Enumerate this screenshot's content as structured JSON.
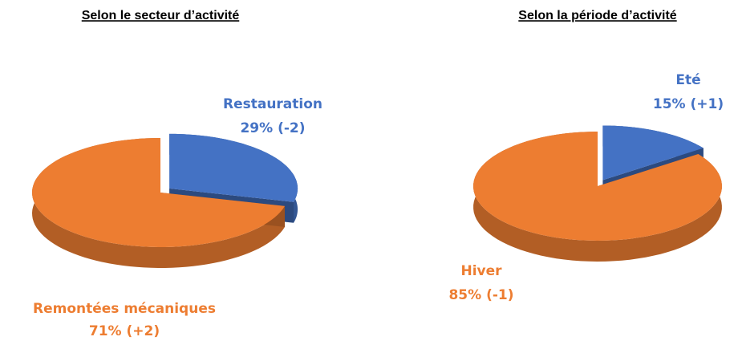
{
  "chart_data": [
    {
      "type": "pie",
      "title": "Selon le secteur d’activité",
      "categories": [
        "Restauration",
        "Remontées mécaniques"
      ],
      "values": [
        29,
        71
      ],
      "value_labels": [
        "29% (-2)",
        "71% (+2)"
      ],
      "colors": [
        "#4472c4",
        "#ed7d31"
      ]
    },
    {
      "type": "pie",
      "title": "Selon la période d’activité",
      "categories": [
        "Eté",
        "Hiver"
      ],
      "values": [
        15,
        85
      ],
      "value_labels": [
        "15% (+1)",
        "85% (-1)"
      ],
      "colors": [
        "#4472c4",
        "#ed7d31"
      ]
    }
  ]
}
